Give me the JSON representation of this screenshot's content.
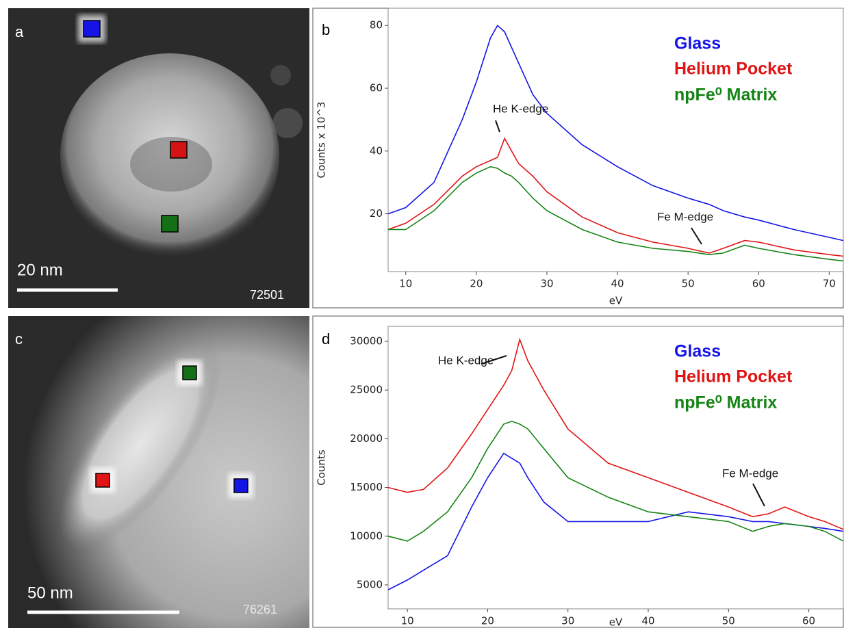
{
  "images": [
    {
      "panel_label": "a",
      "scale_bar": "20 nm",
      "id": "72501"
    },
    {
      "panel_label": "c",
      "scale_bar": "50 nm",
      "id": "76261"
    }
  ],
  "chart_data": [
    {
      "type": "line",
      "panel_label": "b",
      "x_label": "eV",
      "y_label": "Counts x 10^3",
      "x": [
        7.5,
        10,
        14,
        18,
        20,
        22,
        23,
        24,
        25,
        26,
        28,
        30,
        35,
        40,
        45,
        50,
        53,
        55,
        58,
        60,
        65,
        70,
        72
      ],
      "series": [
        {
          "name": "Glass",
          "color": "#1414e6",
          "values": [
            20,
            22,
            30,
            50,
            62,
            76,
            80,
            78,
            73,
            68,
            58,
            52,
            42,
            35,
            29,
            25,
            23,
            21,
            19,
            18,
            15,
            12.5,
            11.5
          ]
        },
        {
          "name": "Helium Pocket",
          "color": "#e01414",
          "values": [
            15,
            17,
            23,
            32,
            35,
            37,
            38,
            44,
            40,
            36,
            32,
            27,
            19,
            14,
            11,
            9,
            7.5,
            9,
            11.5,
            11,
            8.5,
            7,
            6.5
          ]
        },
        {
          "name": "npFe⁰ Matrix",
          "color": "#148414",
          "values": [
            15,
            15,
            21,
            30,
            33,
            35,
            34.5,
            33,
            32,
            30,
            25,
            21,
            15,
            11,
            9,
            8,
            7,
            7.5,
            10,
            9,
            7,
            5.5,
            5
          ]
        }
      ],
      "annotations": [
        "He K-edge",
        "Fe M-edge"
      ],
      "xlim": [
        7.5,
        72
      ],
      "xticks": [
        10,
        20,
        30,
        40,
        50,
        60,
        70
      ],
      "ylim": [
        1.6,
        85.5
      ],
      "yticks": [
        20,
        40,
        60,
        80
      ]
    },
    {
      "type": "line",
      "panel_label": "d",
      "x_label": "eV",
      "y_label": "Counts",
      "x": [
        7.6,
        10,
        12,
        15,
        18,
        20,
        22,
        23,
        24,
        25,
        27,
        30,
        35,
        40,
        45,
        50,
        53,
        55,
        57,
        60,
        62,
        64.3
      ],
      "series": [
        {
          "name": "Glass",
          "color": "#1414e6",
          "values": [
            4500,
            5500,
            6500,
            8000,
            13000,
            16000,
            18500,
            18000,
            17500,
            16000,
            13500,
            11500,
            11500,
            11500,
            12500,
            12000,
            11500,
            11500,
            11300,
            11000,
            10800,
            10500
          ]
        },
        {
          "name": "Helium Pocket",
          "color": "#e01414",
          "values": [
            15000,
            14500,
            14800,
            17000,
            20500,
            23000,
            25500,
            27000,
            30200,
            28000,
            25000,
            21000,
            17500,
            16000,
            14500,
            13000,
            12000,
            12300,
            13000,
            12000,
            11500,
            10700
          ]
        },
        {
          "name": "npFe⁰ Matrix",
          "color": "#148414",
          "values": [
            10000,
            9500,
            10500,
            12500,
            16000,
            19000,
            21500,
            21800,
            21500,
            21000,
            19000,
            16000,
            14000,
            12500,
            12000,
            11500,
            10500,
            11000,
            11300,
            11000,
            10500,
            9500
          ]
        }
      ],
      "annotations": [
        "He K-edge",
        "Fe M-edge"
      ],
      "xlim": [
        7.6,
        64.3
      ],
      "xticks": [
        10,
        20,
        30,
        40,
        50,
        60
      ],
      "ylim": [
        2540,
        31545
      ],
      "yticks": [
        5000,
        10000,
        15000,
        20000,
        25000,
        30000
      ]
    }
  ]
}
